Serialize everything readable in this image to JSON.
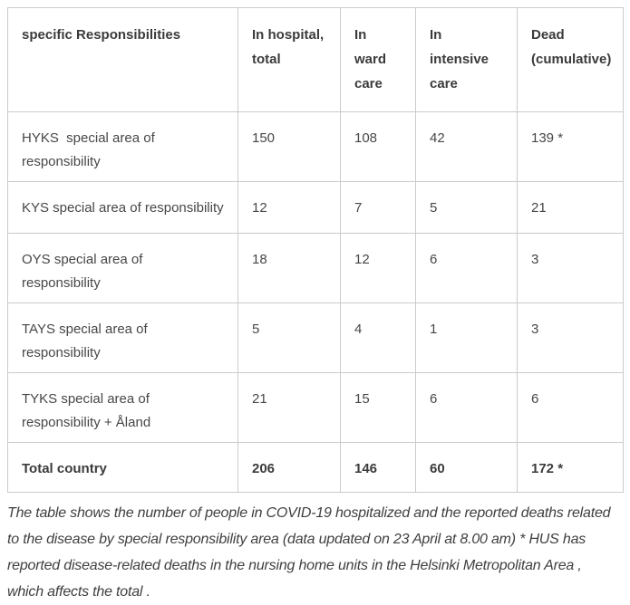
{
  "table": {
    "columns": [
      {
        "label": "specific Responsibilities"
      },
      {
        "label": "In hospital, total"
      },
      {
        "label": "In ward care"
      },
      {
        "label": "In intensive care"
      },
      {
        "label": "Dead (cumulative)"
      }
    ],
    "rows": [
      {
        "area": "HYKS  special area of responsibility",
        "in_hospital_total": "150",
        "in_ward_care": "108",
        "in_intensive_care": "42",
        "dead_cumulative": "139 *"
      },
      {
        "area": "KYS special area of responsibility",
        "in_hospital_total": "12",
        "in_ward_care": "7",
        "in_intensive_care": "5",
        "dead_cumulative": "21"
      },
      {
        "area": "OYS special area of responsibility",
        "in_hospital_total": "18",
        "in_ward_care": "12",
        "in_intensive_care": "6",
        "dead_cumulative": "3"
      },
      {
        "area": "TAYS special area of responsibility",
        "in_hospital_total": "5",
        "in_ward_care": "4",
        "in_intensive_care": "1",
        "dead_cumulative": "3"
      },
      {
        "area": "TYKS special area of responsibility + Åland",
        "in_hospital_total": "21",
        "in_ward_care": "15",
        "in_intensive_care": "6",
        "dead_cumulative": "6"
      },
      {
        "area": "Total country",
        "in_hospital_total": "206",
        "in_ward_care": "146",
        "in_intensive_care": "60",
        "dead_cumulative": "172 *"
      }
    ]
  },
  "footnote": {
    "lines": [
      "The table shows the number of people in COVID-19 hospitalized and the reported deaths related",
      "to the disease by special responsibility area (data updated on 23 April at 8.00 am) * HUS has",
      "reported disease-related deaths in the nursing home units in the Helsinki Metropolitan Area ,",
      "which affects the total ."
    ],
    "full_text": "The table shows the number of people in COVID-19 hospitalized and the reported deaths related to the disease by special responsibility area (data updated on 23 April at 8.00 am) * HUS has reported disease-related deaths in the nursing home units in the Helsinki Metropolitan Area , which affects the total ."
  },
  "colors": {
    "border": "#cbcbcb",
    "header_text": "#3b3b3b",
    "body_text": "#474747",
    "footnote_text": "#3f3f3f",
    "background": "#ffffff"
  }
}
